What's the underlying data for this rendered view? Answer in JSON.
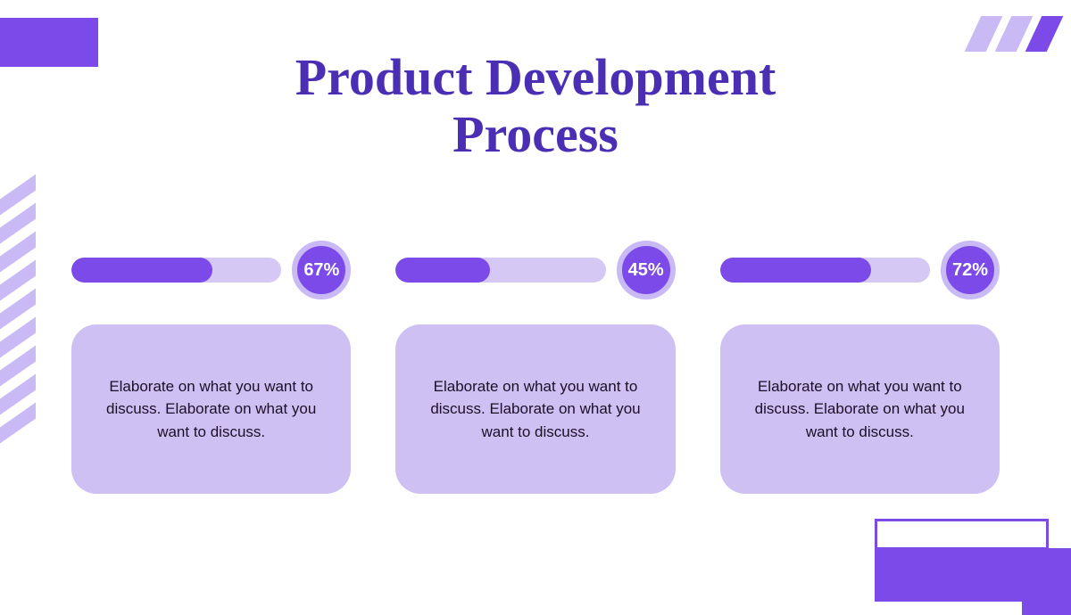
{
  "title": "Product Development\nProcess",
  "title_color": "#4a2fb5",
  "title_fontsize": 58,
  "background_color": "#ffffff",
  "accent_solid": "#7b4ae8",
  "accent_light": "#c9b9f5",
  "card_bg": "#cfc0f3",
  "badge_fill": "#7b4ae8",
  "badge_ring": "#c9b9f5",
  "track_bg": "#d5c8f5",
  "fill_color": "#7b4ae8",
  "columns": [
    {
      "percent": 67,
      "badge_label": "67%",
      "text": "Elaborate on what you want to discuss. Elaborate on what you want to discuss."
    },
    {
      "percent": 45,
      "badge_label": "45%",
      "text": "Elaborate on what you want to discuss. Elaborate on what you want to discuss."
    },
    {
      "percent": 72,
      "badge_label": "72%",
      "text": "Elaborate on what you want to discuss. Elaborate on what you want to discuss."
    }
  ],
  "card_fontsize": 17,
  "card_text_color": "#1a1028",
  "badge_fontsize": 20,
  "decorations": {
    "topleft_color": "#7b4ae8",
    "topright_colors": [
      "#c9b9f5",
      "#c9b9f5",
      "#7b4ae8"
    ],
    "leftstripe_color": "#c9b9f5",
    "bottomright_rect_color": "#7b4ae8",
    "bottomright_outline_color": "#7b4ae8"
  }
}
